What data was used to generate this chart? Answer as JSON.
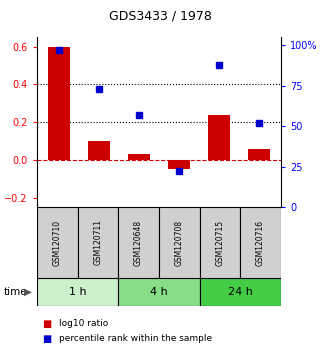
{
  "title": "GDS3433 / 1978",
  "samples": [
    "GSM120710",
    "GSM120711",
    "GSM120648",
    "GSM120708",
    "GSM120715",
    "GSM120716"
  ],
  "log10_ratio": [
    0.6,
    0.1,
    0.03,
    -0.05,
    0.24,
    0.06
  ],
  "percentile_rank": [
    97,
    73,
    57,
    22,
    88,
    52
  ],
  "time_groups": [
    {
      "label": "1 h",
      "start": 0,
      "end": 2,
      "color": "#ccf0cc"
    },
    {
      "label": "4 h",
      "start": 2,
      "end": 4,
      "color": "#88dd88"
    },
    {
      "label": "24 h",
      "start": 4,
      "end": 6,
      "color": "#44cc44"
    }
  ],
  "bar_color": "#cc0000",
  "dot_color": "#0000cc",
  "left_ylim": [
    -0.25,
    0.65
  ],
  "right_ylim": [
    0,
    105
  ],
  "left_yticks": [
    -0.2,
    0.0,
    0.2,
    0.4,
    0.6
  ],
  "right_yticks": [
    0,
    25,
    50,
    75,
    100
  ],
  "right_yticklabels": [
    "0",
    "25",
    "50",
    "75",
    "100%"
  ],
  "bg_color": "#ffffff",
  "sample_box_color": "#d0d0d0"
}
